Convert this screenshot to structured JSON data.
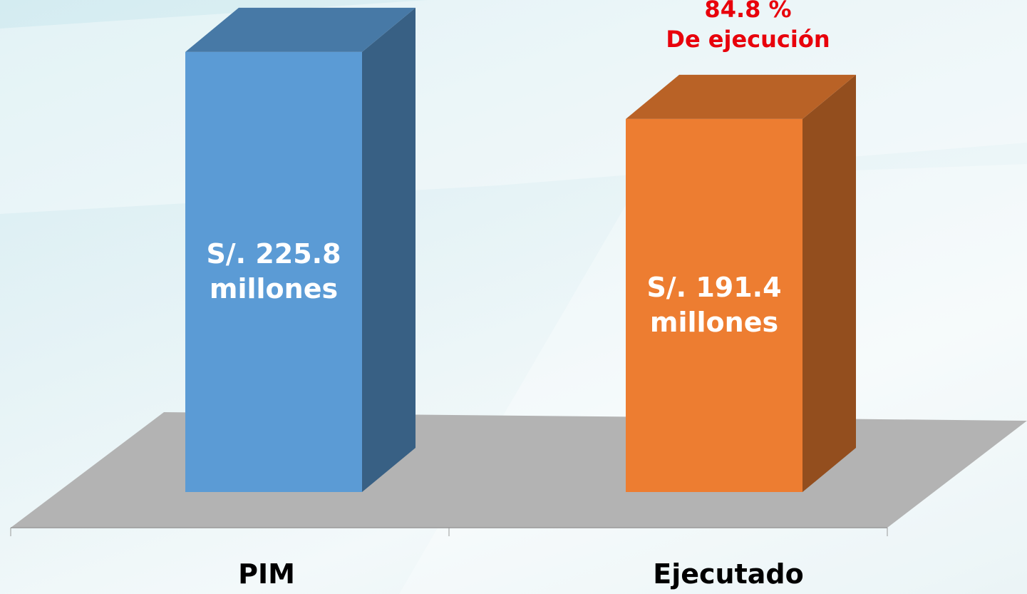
{
  "chart_data": {
    "type": "bar3d",
    "categories": [
      "PIM",
      "Ejecutado"
    ],
    "values": [
      225.8,
      191.4
    ],
    "value_labels": [
      "S/. 225.8\nmillones",
      "S/. 191.4\nmillones"
    ],
    "colors": [
      "#5b9bd5",
      "#ed7d31"
    ],
    "annotation": "84.8 %\nDe ejecución"
  }
}
